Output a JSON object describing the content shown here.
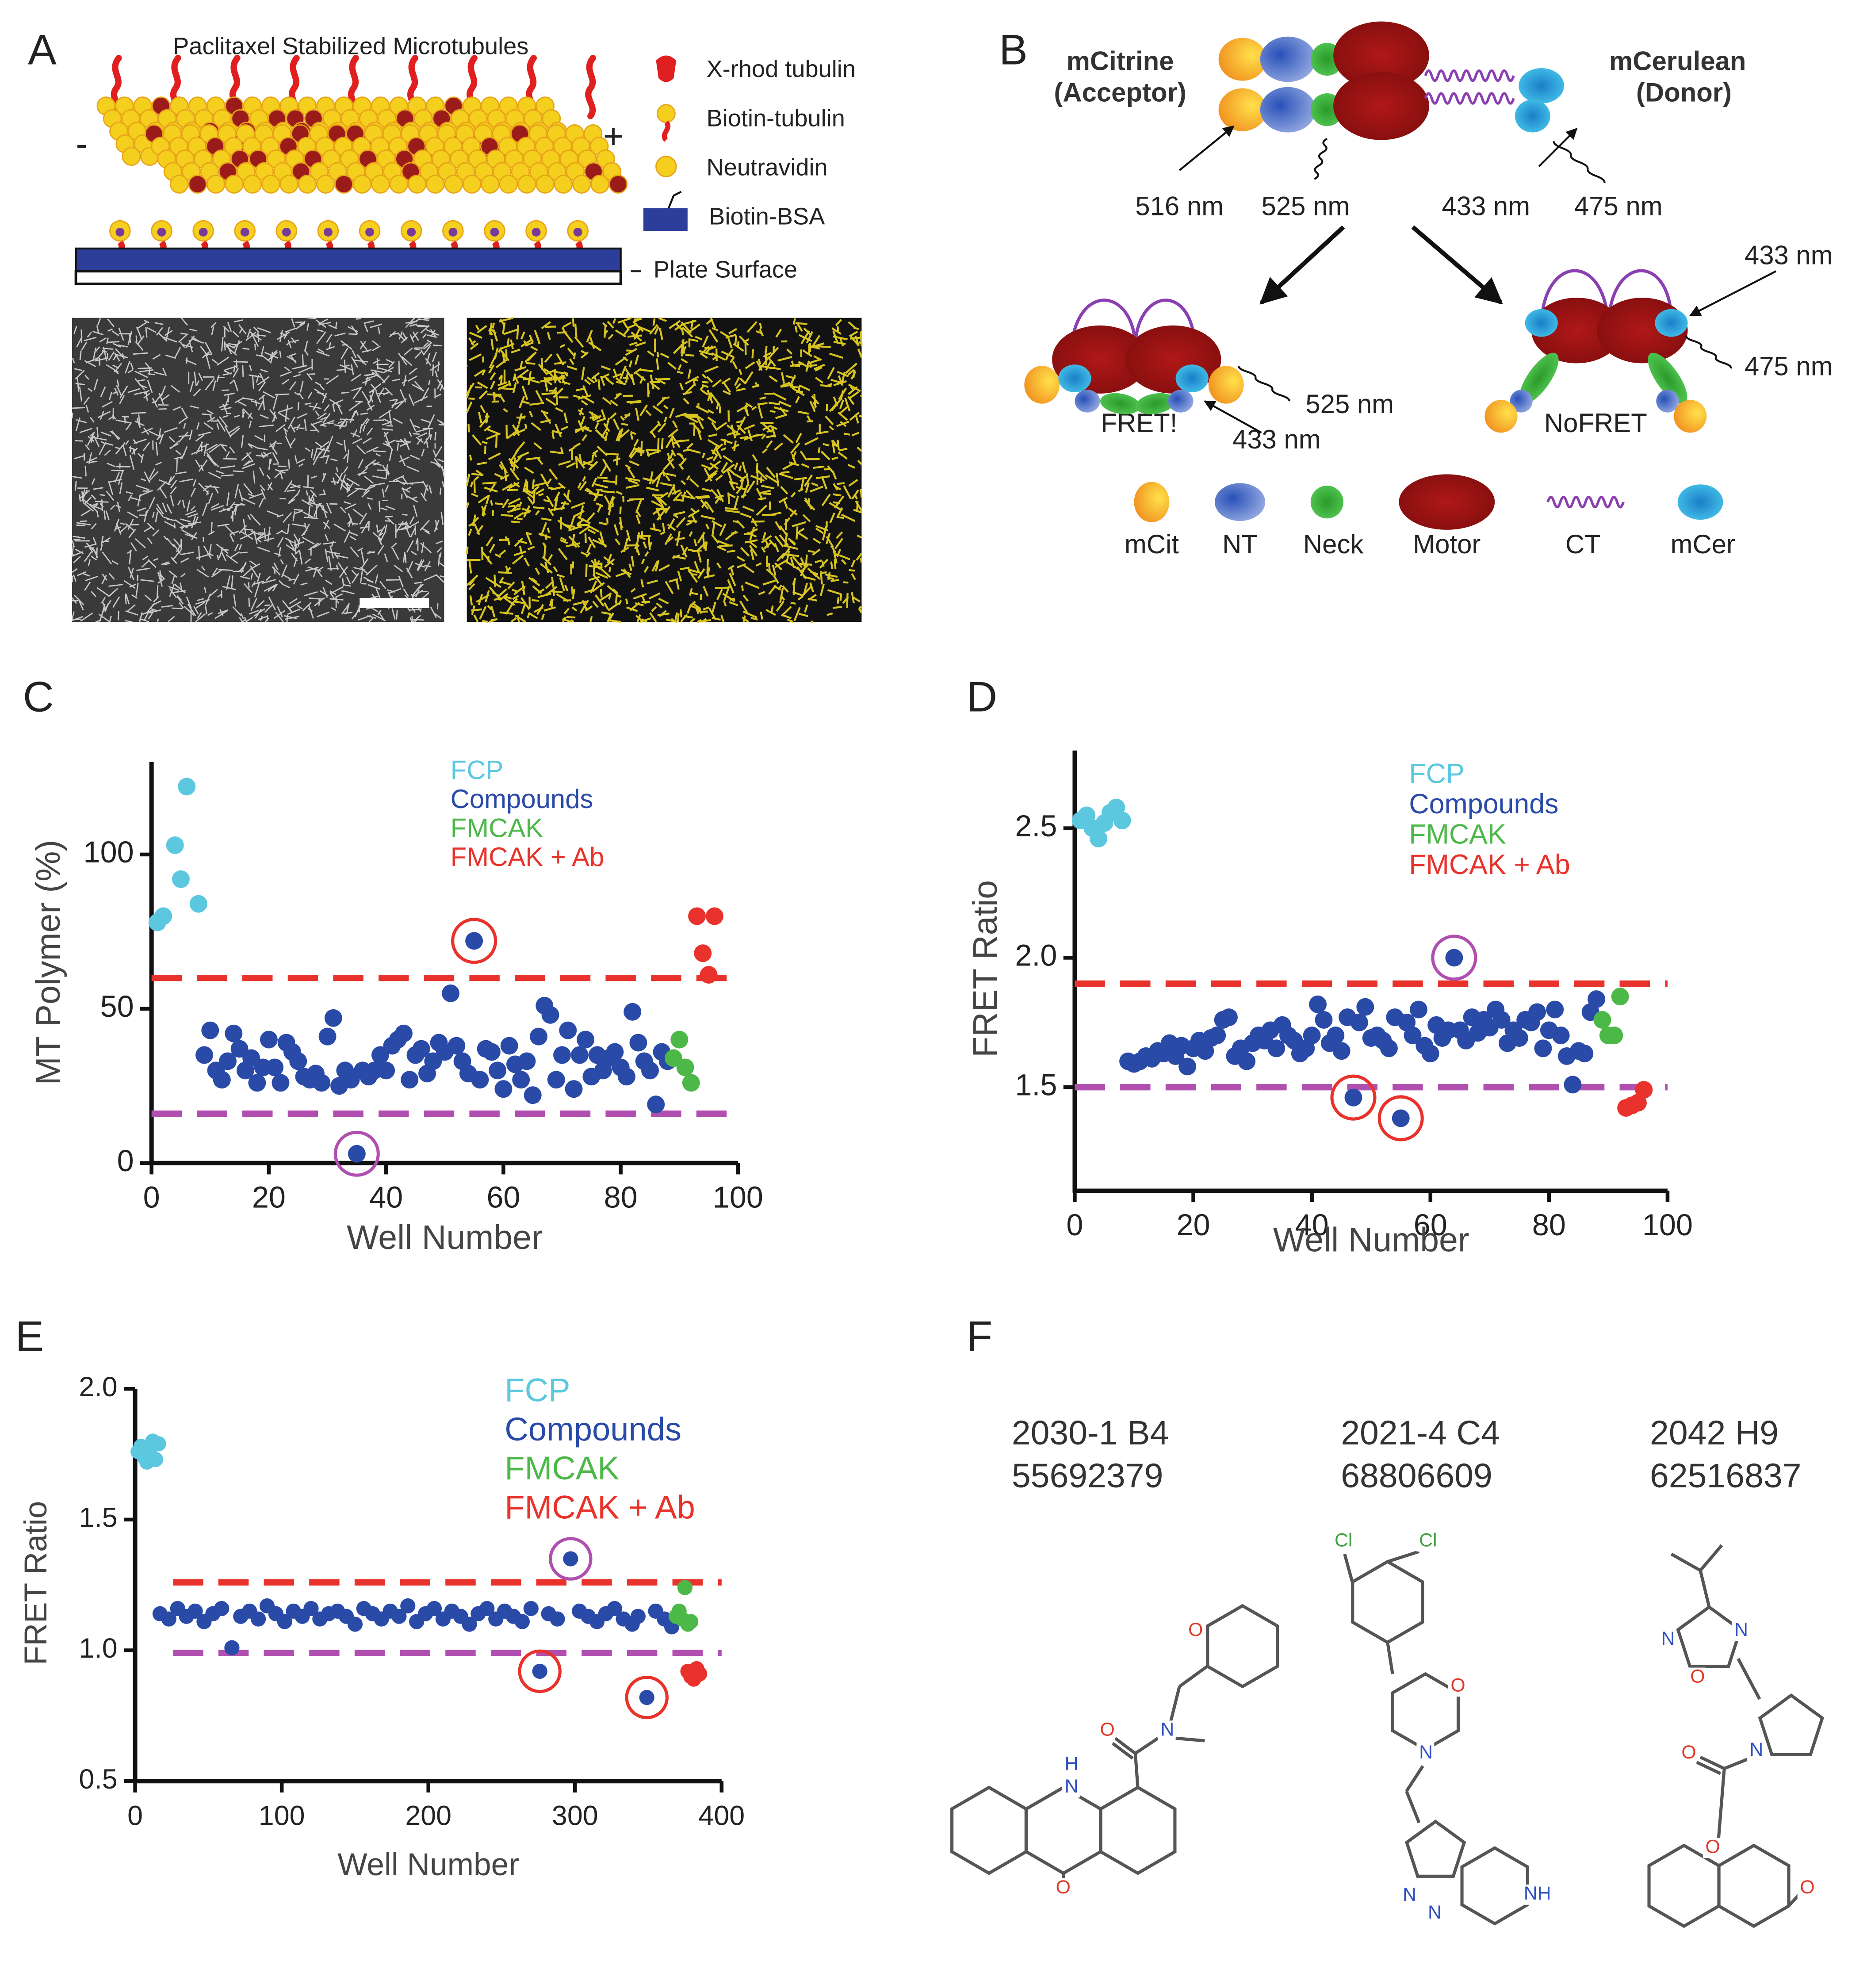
{
  "panel_labels": [
    "A",
    "B",
    "C",
    "D",
    "E",
    "F"
  ],
  "panel_a": {
    "title": "Paclitaxel Stabilized Microtubules",
    "legend": [
      "X-rhod tubulin",
      "Biotin-tubulin",
      "Neutravidin",
      "Biotin-BSA"
    ],
    "surface": "Plate Surface",
    "minus_end": "-",
    "plus_end": "+"
  },
  "panel_b": {
    "acceptor": [
      "mCitrine",
      "(Acceptor)"
    ],
    "donor": [
      "mCerulean",
      "(Donor)"
    ],
    "wavelengths_top": [
      "516 nm",
      "525 nm",
      "433 nm",
      "475 nm"
    ],
    "fret_state": {
      "label": "FRET!",
      "excitation": "433 nm",
      "emission": "525 nm"
    },
    "nofret_state": {
      "label": "NoFRET",
      "excitation": "433 nm",
      "emission": "475 nm"
    },
    "legend": [
      "mCit",
      "NT",
      "Neck",
      "Motor",
      "CT",
      "mCer"
    ]
  },
  "chart_data": [
    {
      "type": "scatter",
      "ylabel": "MT Polymer (%)",
      "xlabel": "Well Number",
      "xlim": [
        0,
        100
      ],
      "xticks": [
        0,
        20,
        40,
        60,
        80,
        100
      ],
      "ylim": [
        0,
        130
      ],
      "yticks": [
        0,
        50,
        100
      ],
      "legend": "upper center",
      "thresholds": [
        {
          "value": 60,
          "color": "#e8322b"
        },
        {
          "value": 16,
          "color": "#b04fb0"
        }
      ],
      "highlights": [
        {
          "series": 1,
          "index": 26,
          "color": "#b04fb0"
        },
        {
          "series": 1,
          "index": 46,
          "color": "#e8322b"
        }
      ],
      "series": [
        {
          "name": "FCP",
          "color": "#5bc8e0",
          "x": [
            1,
            2,
            4,
            5,
            6,
            8
          ],
          "values": [
            78,
            80,
            103,
            92,
            122,
            84
          ]
        },
        {
          "name": "Compounds",
          "color": "#2a4aa8",
          "x": [
            9,
            10,
            11,
            12,
            13,
            14,
            15,
            16,
            17,
            18,
            19,
            20,
            21,
            22,
            23,
            24,
            25,
            26,
            27,
            28,
            29,
            30,
            31,
            32,
            33,
            34,
            35,
            36,
            37,
            38,
            39,
            40,
            41,
            42,
            43,
            44,
            45,
            46,
            47,
            48,
            49,
            50,
            51,
            52,
            53,
            54,
            55,
            56,
            57,
            58,
            59,
            60,
            61,
            62,
            63,
            64,
            65,
            66,
            67,
            68,
            69,
            70,
            71,
            72,
            73,
            74,
            75,
            76,
            77,
            78,
            79,
            80,
            81,
            82,
            83,
            84,
            85,
            86,
            87,
            88
          ],
          "values": [
            35,
            43,
            30,
            27,
            33,
            42,
            37,
            30,
            34,
            26,
            31,
            40,
            31,
            26,
            39,
            36,
            33,
            28,
            27,
            29,
            26,
            41,
            47,
            25,
            30,
            27,
            3,
            30,
            28,
            30,
            35,
            30,
            38,
            40,
            42,
            27,
            35,
            37,
            29,
            33,
            39,
            36,
            55,
            38,
            33,
            29,
            72,
            27,
            37,
            36,
            30,
            24,
            38,
            32,
            27,
            33,
            22,
            41,
            51,
            48,
            27,
            35,
            43,
            24,
            35,
            40,
            28,
            35,
            30,
            34,
            36,
            31,
            28,
            49,
            39,
            33,
            30,
            19,
            36,
            33
          ]
        },
        {
          "name": "FMCAK",
          "color": "#4cb848",
          "x": [
            89,
            90,
            91,
            92
          ],
          "values": [
            34,
            40,
            31,
            26
          ]
        },
        {
          "name": "FMCAK + Ab",
          "color": "#e8322b",
          "x": [
            93,
            94,
            95,
            96
          ],
          "values": [
            80,
            68,
            61,
            80
          ]
        }
      ]
    },
    {
      "type": "scatter",
      "ylabel": "FRET Ratio",
      "xlabel": "Well Number",
      "xlim": [
        0,
        100
      ],
      "xticks": [
        0,
        20,
        40,
        60,
        80,
        100
      ],
      "ylim": [
        1.1,
        2.8
      ],
      "yticks": [
        1.5,
        {
          "value": 2,
          "label": "2.0"
        },
        2.5
      ],
      "legend": "upper center",
      "thresholds": [
        {
          "value": 1.9,
          "color": "#e8322b"
        },
        {
          "value": 1.5,
          "color": "#b04fb0"
        }
      ],
      "highlights": [
        {
          "series": 1,
          "index": 55,
          "color": "#b04fb0"
        },
        {
          "series": 1,
          "index": 38,
          "color": "#e8322b"
        },
        {
          "series": 1,
          "index": 46,
          "color": "#e8322b"
        }
      ],
      "series": [
        {
          "name": "FCP",
          "color": "#5bc8e0",
          "x": [
            1,
            2,
            3,
            4,
            5,
            6,
            7,
            8
          ],
          "values": [
            2.53,
            2.55,
            2.5,
            2.46,
            2.52,
            2.56,
            2.58,
            2.53
          ]
        },
        {
          "name": "Compounds",
          "color": "#2a4aa8",
          "x": [
            9,
            10,
            11,
            12,
            13,
            14,
            15,
            16,
            17,
            18,
            19,
            20,
            21,
            22,
            23,
            24,
            25,
            26,
            27,
            28,
            29,
            30,
            31,
            32,
            33,
            34,
            35,
            36,
            37,
            38,
            39,
            40,
            41,
            42,
            43,
            44,
            45,
            46,
            47,
            48,
            49,
            50,
            51,
            52,
            53,
            54,
            55,
            56,
            57,
            58,
            59,
            60,
            61,
            62,
            63,
            64,
            65,
            66,
            67,
            68,
            69,
            70,
            71,
            72,
            73,
            74,
            75,
            76,
            77,
            78,
            79,
            80,
            81,
            82,
            83,
            84,
            85,
            86,
            87,
            88
          ],
          "values": [
            1.6,
            1.59,
            1.6,
            1.62,
            1.61,
            1.64,
            1.63,
            1.67,
            1.62,
            1.66,
            1.58,
            1.65,
            1.68,
            1.64,
            1.69,
            1.7,
            1.76,
            1.77,
            1.62,
            1.65,
            1.6,
            1.67,
            1.7,
            1.68,
            1.72,
            1.65,
            1.74,
            1.7,
            1.68,
            1.63,
            1.65,
            1.7,
            1.82,
            1.76,
            1.67,
            1.7,
            1.64,
            1.77,
            1.46,
            1.75,
            1.81,
            1.69,
            1.7,
            1.68,
            1.65,
            1.77,
            1.38,
            1.75,
            1.7,
            1.8,
            1.66,
            1.63,
            1.74,
            1.69,
            1.72,
            2.0,
            1.72,
            1.68,
            1.77,
            1.71,
            1.76,
            1.73,
            1.8,
            1.76,
            1.67,
            1.72,
            1.69,
            1.76,
            1.75,
            1.79,
            1.65,
            1.72,
            1.8,
            1.7,
            1.62,
            1.51,
            1.64,
            1.63,
            1.79,
            1.84
          ]
        },
        {
          "name": "FMCAK",
          "color": "#4cb848",
          "x": [
            89,
            90,
            91,
            92
          ],
          "values": [
            1.76,
            1.7,
            1.7,
            1.85
          ]
        },
        {
          "name": "FMCAK + Ab",
          "color": "#e8322b",
          "x": [
            93,
            94,
            95,
            96
          ],
          "values": [
            1.42,
            1.43,
            1.44,
            1.49
          ]
        }
      ]
    },
    {
      "type": "scatter",
      "ylabel": "FRET Ratio",
      "xlabel": "Well Number",
      "xlim": [
        0,
        400
      ],
      "xticks": [
        0,
        100,
        200,
        300,
        400
      ],
      "ylim": [
        0.5,
        2.0
      ],
      "yticks": [
        0.5,
        {
          "value": 1,
          "label": "1.0"
        },
        1.5,
        {
          "value": 2,
          "label": "2.0"
        }
      ],
      "legend": "upper center",
      "thresholds": [
        {
          "value": 1.26,
          "color": "#e8322b"
        },
        {
          "value": 0.99,
          "color": "#b04fb0"
        }
      ],
      "highlights": [
        {
          "series": 1,
          "index": 46,
          "color": "#b04fb0"
        },
        {
          "series": 1,
          "index": 43,
          "color": "#e8322b"
        },
        {
          "series": 1,
          "index": 55,
          "color": "#e8322b"
        }
      ],
      "series": [
        {
          "name": "FCP",
          "color": "#5bc8e0",
          "x": [
            2,
            4,
            6,
            8,
            10,
            12,
            14,
            16
          ],
          "values": [
            1.76,
            1.78,
            1.74,
            1.72,
            1.77,
            1.8,
            1.73,
            1.79
          ]
        },
        {
          "name": "Compounds",
          "color": "#2a4aa8",
          "x": [
            17,
            23,
            29,
            35,
            41,
            47,
            53,
            59,
            66,
            72,
            78,
            84,
            90,
            96,
            102,
            108,
            114,
            120,
            126,
            132,
            138,
            144,
            150,
            156,
            162,
            168,
            174,
            180,
            186,
            192,
            198,
            204,
            210,
            216,
            222,
            228,
            234,
            240,
            246,
            252,
            258,
            264,
            270,
            276,
            282,
            288,
            297,
            303,
            309,
            315,
            321,
            327,
            333,
            339,
            343,
            349,
            355,
            361,
            366
          ],
          "values": [
            1.14,
            1.12,
            1.16,
            1.13,
            1.15,
            1.11,
            1.14,
            1.16,
            1.01,
            1.13,
            1.15,
            1.12,
            1.17,
            1.14,
            1.11,
            1.15,
            1.13,
            1.16,
            1.12,
            1.14,
            1.15,
            1.13,
            1.1,
            1.16,
            1.14,
            1.12,
            1.15,
            1.13,
            1.17,
            1.11,
            1.14,
            1.16,
            1.12,
            1.15,
            1.13,
            1.1,
            1.14,
            1.16,
            1.12,
            1.15,
            1.13,
            1.11,
            1.16,
            0.92,
            1.14,
            1.12,
            1.35,
            1.15,
            1.13,
            1.11,
            1.14,
            1.16,
            1.12,
            1.1,
            1.13,
            0.82,
            1.15,
            1.12,
            1.09
          ]
        },
        {
          "name": "FMCAK",
          "color": "#4cb848",
          "x": [
            369,
            371,
            373,
            375,
            377,
            379
          ],
          "values": [
            1.13,
            1.15,
            1.12,
            1.24,
            1.1,
            1.11
          ]
        },
        {
          "name": "FMCAK + Ab",
          "color": "#e8322b",
          "x": [
            377,
            379,
            381,
            383,
            385
          ],
          "values": [
            0.92,
            0.9,
            0.89,
            0.93,
            0.91
          ]
        }
      ]
    }
  ],
  "panel_f": {
    "compounds": [
      {
        "plate": "2030-1 B4",
        "id": "55692379",
        "atoms": [
          "O",
          "O",
          "N",
          "H",
          "N",
          "O"
        ]
      },
      {
        "plate": "2021-4 C4",
        "id": "68806609",
        "atoms": [
          "Cl",
          "Cl",
          "O",
          "N",
          "N",
          "N",
          "NH"
        ]
      },
      {
        "plate": "2042 H9",
        "id": "62516837",
        "atoms": [
          "N",
          "O",
          "N",
          "N",
          "O",
          "O",
          "O"
        ]
      }
    ]
  }
}
